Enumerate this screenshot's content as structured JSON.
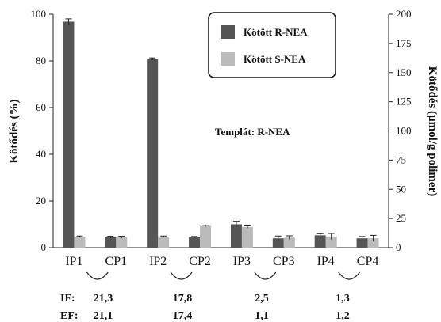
{
  "chart_data": {
    "type": "bar",
    "categories": [
      "IP1",
      "CP1",
      "IP2",
      "CP2",
      "IP3",
      "CP3",
      "IP4",
      "CP4"
    ],
    "series": [
      {
        "name": "Kötött R-NEA",
        "color": "#555555",
        "values": [
          96.8,
          4.5,
          80.8,
          4.5,
          10.0,
          4.0,
          5.3,
          4.0
        ],
        "errors": [
          1.2,
          0.4,
          0.5,
          0.3,
          1.3,
          1.0,
          0.7,
          0.8
        ]
      },
      {
        "name": "Kötött S-NEA",
        "color": "#bbbbbb",
        "values": [
          4.7,
          4.5,
          4.7,
          9.3,
          8.8,
          4.3,
          4.8,
          4.0
        ],
        "errors": [
          0.3,
          0.4,
          0.3,
          0.3,
          0.5,
          0.8,
          1.3,
          1.3
        ]
      }
    ],
    "ylabel_left": "Kötődés (%)",
    "ylim_left": [
      0,
      100
    ],
    "yticks_left": [
      "0",
      "20",
      "40",
      "60",
      "80",
      "100"
    ],
    "ylabel_right": "Kötődés (µmol/g polimer)",
    "ylim_right": [
      0,
      200
    ],
    "yticks_right": [
      "0",
      "25",
      "50",
      "75",
      "100",
      "125",
      "150",
      "175",
      "200"
    ],
    "legend_position": "top-right",
    "annotation": "Templát: R-NEA",
    "grid": false
  },
  "footer": {
    "if_label": "IF:",
    "ef_label": "EF:",
    "if_values": [
      "21,3",
      "17,8",
      "2,5",
      "1,3"
    ],
    "ef_values": [
      "21,1",
      "17,4",
      "1,1",
      "1,2"
    ]
  }
}
